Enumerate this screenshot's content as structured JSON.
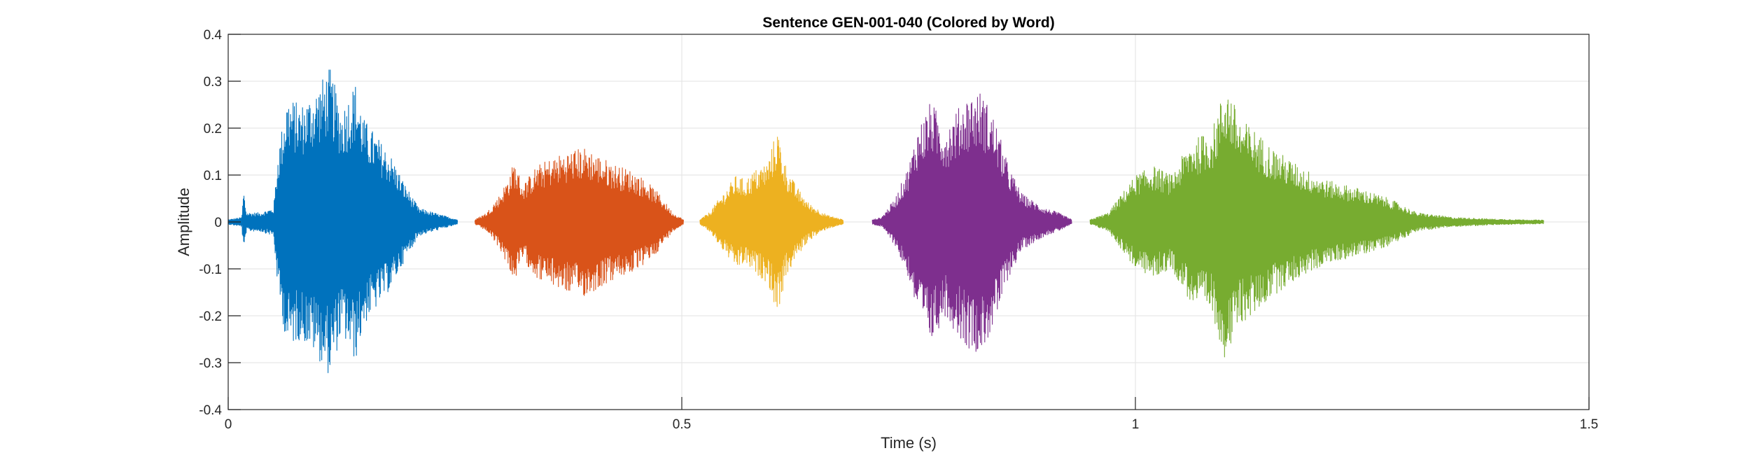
{
  "chart_data": {
    "type": "line",
    "title": "Sentence GEN-001-040 (Colored by Word)",
    "xlabel": "Time (s)",
    "ylabel": "Amplitude",
    "xlim": [
      0,
      1.5
    ],
    "ylim": [
      -0.4,
      0.4
    ],
    "xticks": [
      0,
      0.5,
      1,
      1.5
    ],
    "xtick_labels": [
      "0",
      "0.5",
      "1",
      "1.5"
    ],
    "yticks": [
      0.4,
      0.3,
      0.2,
      0.1,
      0,
      -0.1,
      -0.2,
      -0.3,
      -0.4
    ],
    "ytick_labels": [
      "0.4",
      "0.3",
      "0.2",
      "0.1",
      "0",
      "-0.1",
      "-0.2",
      "-0.3",
      "-0.4"
    ],
    "grid": true,
    "legend": false,
    "series": [
      {
        "color": "#0072BD",
        "t_start": 0.0,
        "t_end": 0.253,
        "envelope": [
          [
            0.0,
            0.005
          ],
          [
            0.015,
            0.01
          ],
          [
            0.017,
            0.07
          ],
          [
            0.02,
            0.02
          ],
          [
            0.035,
            0.02
          ],
          [
            0.05,
            0.03
          ],
          [
            0.055,
            0.15
          ],
          [
            0.065,
            0.27
          ],
          [
            0.08,
            0.25
          ],
          [
            0.095,
            0.28
          ],
          [
            0.112,
            0.33
          ],
          [
            0.125,
            0.24
          ],
          [
            0.14,
            0.3
          ],
          [
            0.15,
            0.22
          ],
          [
            0.165,
            0.18
          ],
          [
            0.18,
            0.14
          ],
          [
            0.195,
            0.08
          ],
          [
            0.21,
            0.03
          ],
          [
            0.235,
            0.015
          ],
          [
            0.253,
            0.005
          ]
        ]
      },
      {
        "color": "#D95319",
        "t_start": 0.272,
        "t_end": 0.502,
        "envelope": [
          [
            0.272,
            0.005
          ],
          [
            0.285,
            0.02
          ],
          [
            0.3,
            0.06
          ],
          [
            0.31,
            0.1
          ],
          [
            0.315,
            0.13
          ],
          [
            0.325,
            0.08
          ],
          [
            0.34,
            0.12
          ],
          [
            0.36,
            0.14
          ],
          [
            0.38,
            0.155
          ],
          [
            0.395,
            0.16
          ],
          [
            0.41,
            0.14
          ],
          [
            0.43,
            0.12
          ],
          [
            0.445,
            0.11
          ],
          [
            0.46,
            0.09
          ],
          [
            0.475,
            0.06
          ],
          [
            0.49,
            0.02
          ],
          [
            0.502,
            0.005
          ]
        ]
      },
      {
        "color": "#EDB120",
        "t_start": 0.52,
        "t_end": 0.678,
        "envelope": [
          [
            0.52,
            0.005
          ],
          [
            0.53,
            0.02
          ],
          [
            0.545,
            0.06
          ],
          [
            0.56,
            0.1
          ],
          [
            0.57,
            0.09
          ],
          [
            0.58,
            0.11
          ],
          [
            0.595,
            0.13
          ],
          [
            0.605,
            0.2
          ],
          [
            0.615,
            0.12
          ],
          [
            0.625,
            0.08
          ],
          [
            0.64,
            0.04
          ],
          [
            0.66,
            0.015
          ],
          [
            0.678,
            0.005
          ]
        ]
      },
      {
        "color": "#7E2F8E",
        "t_start": 0.71,
        "t_end": 0.93,
        "envelope": [
          [
            0.71,
            0.005
          ],
          [
            0.72,
            0.01
          ],
          [
            0.735,
            0.05
          ],
          [
            0.75,
            0.12
          ],
          [
            0.76,
            0.2
          ],
          [
            0.775,
            0.26
          ],
          [
            0.79,
            0.2
          ],
          [
            0.8,
            0.23
          ],
          [
            0.815,
            0.27
          ],
          [
            0.83,
            0.28
          ],
          [
            0.845,
            0.22
          ],
          [
            0.86,
            0.12
          ],
          [
            0.875,
            0.06
          ],
          [
            0.9,
            0.03
          ],
          [
            0.915,
            0.02
          ],
          [
            0.93,
            0.005
          ]
        ]
      },
      {
        "color": "#77AC30",
        "t_start": 0.95,
        "t_end": 1.45,
        "envelope": [
          [
            0.95,
            0.005
          ],
          [
            0.97,
            0.02
          ],
          [
            0.985,
            0.06
          ],
          [
            1.0,
            0.1
          ],
          [
            1.02,
            0.12
          ],
          [
            1.04,
            0.1
          ],
          [
            1.06,
            0.17
          ],
          [
            1.085,
            0.2
          ],
          [
            1.1,
            0.3
          ],
          [
            1.115,
            0.22
          ],
          [
            1.13,
            0.2
          ],
          [
            1.15,
            0.16
          ],
          [
            1.18,
            0.12
          ],
          [
            1.21,
            0.09
          ],
          [
            1.25,
            0.07
          ],
          [
            1.28,
            0.05
          ],
          [
            1.31,
            0.02
          ],
          [
            1.35,
            0.01
          ],
          [
            1.4,
            0.006
          ],
          [
            1.45,
            0.004
          ]
        ]
      }
    ]
  }
}
